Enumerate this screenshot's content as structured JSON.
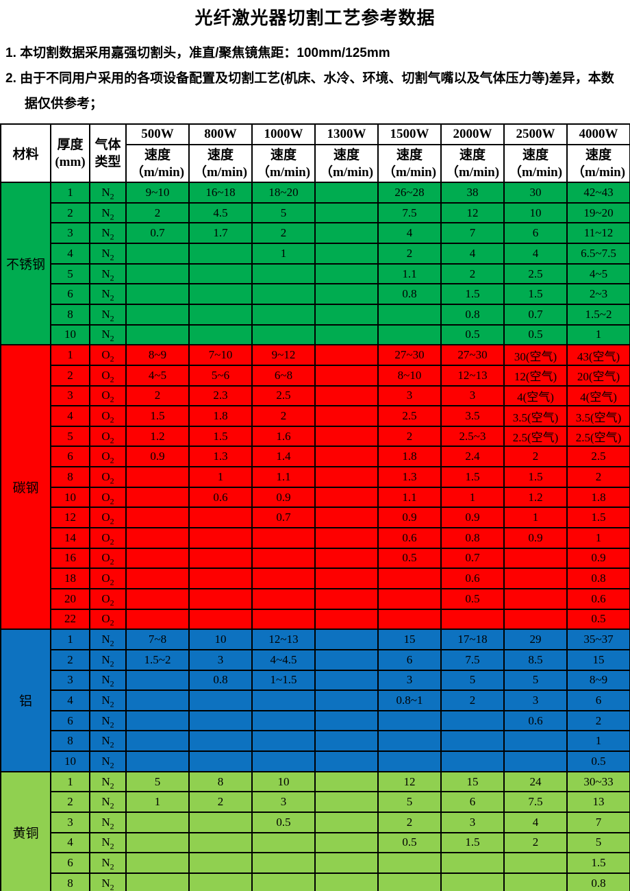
{
  "page": {
    "title": "光纤激光器切割工艺参考数据",
    "notes": [
      "1. 本切割数据采用嘉强切割头，准直/聚焦镜焦距：100mm/125mm",
      "2. 由于不同用户采用的各项设备配置及切割工艺(机床、水冷、环境、切割气嘴以及气体压力等)差异，本数据仅供参考；"
    ]
  },
  "table": {
    "header": {
      "material": "材料",
      "thickness_top": "厚度",
      "thickness_bottom": "(mm)",
      "gas_top": "气体",
      "gas_bottom": "类型",
      "powers": [
        "500W",
        "800W",
        "1000W",
        "1300W",
        "1500W",
        "2000W",
        "2500W",
        "4000W"
      ],
      "speed_label": "速度",
      "speed_unit": "（m/min)"
    },
    "sections": [
      {
        "material": "不锈钢",
        "color": "#00AC50",
        "rows": [
          {
            "thickness": "1",
            "gas": "N2",
            "speeds": [
              "9~10",
              "16~18",
              "18~20",
              "",
              "26~28",
              "38",
              "30",
              "42~43"
            ]
          },
          {
            "thickness": "2",
            "gas": "N2",
            "speeds": [
              "2",
              "4.5",
              "5",
              "",
              "7.5",
              "12",
              "10",
              "19~20"
            ]
          },
          {
            "thickness": "3",
            "gas": "N2",
            "speeds": [
              "0.7",
              "1.7",
              "2",
              "",
              "4",
              "7",
              "6",
              "11~12"
            ]
          },
          {
            "thickness": "4",
            "gas": "N2",
            "speeds": [
              "",
              "",
              "1",
              "",
              "2",
              "4",
              "4",
              "6.5~7.5"
            ]
          },
          {
            "thickness": "5",
            "gas": "N2",
            "speeds": [
              "",
              "",
              "",
              "",
              "1.1",
              "2",
              "2.5",
              "4~5"
            ]
          },
          {
            "thickness": "6",
            "gas": "N2",
            "speeds": [
              "",
              "",
              "",
              "",
              "0.8",
              "1.5",
              "1.5",
              "2~3"
            ]
          },
          {
            "thickness": "8",
            "gas": "N2",
            "speeds": [
              "",
              "",
              "",
              "",
              "",
              "0.8",
              "0.7",
              "1.5~2"
            ]
          },
          {
            "thickness": "10",
            "gas": "N2",
            "speeds": [
              "",
              "",
              "",
              "",
              "",
              "0.5",
              "0.5",
              "1"
            ]
          }
        ]
      },
      {
        "material": "碳钢",
        "color": "#FE0000",
        "rows": [
          {
            "thickness": "1",
            "gas": "O2",
            "speeds": [
              "8~9",
              "7~10",
              "9~12",
              "",
              "27~30",
              "27~30",
              "30(空气)",
              "43(空气)"
            ]
          },
          {
            "thickness": "2",
            "gas": "O2",
            "speeds": [
              "4~5",
              "5~6",
              "6~8",
              "",
              "8~10",
              "12~13",
              "12(空气)",
              "20(空气)"
            ]
          },
          {
            "thickness": "3",
            "gas": "O2",
            "speeds": [
              "2",
              "2.3",
              "2.5",
              "",
              "3",
              "3",
              "4(空气)",
              "4(空气)"
            ]
          },
          {
            "thickness": "4",
            "gas": "O2",
            "speeds": [
              "1.5",
              "1.8",
              "2",
              "",
              "2.5",
              "3.5",
              "3.5(空气)",
              "3.5(空气)"
            ]
          },
          {
            "thickness": "5",
            "gas": "O2",
            "speeds": [
              "1.2",
              "1.5",
              "1.6",
              "",
              "2",
              "2.5~3",
              "2.5(空气)",
              "2.5(空气)"
            ]
          },
          {
            "thickness": "6",
            "gas": "O2",
            "speeds": [
              "0.9",
              "1.3",
              "1.4",
              "",
              "1.8",
              "2.4",
              "2",
              "2.5"
            ]
          },
          {
            "thickness": "8",
            "gas": "O2",
            "speeds": [
              "",
              "1",
              "1.1",
              "",
              "1.3",
              "1.5",
              "1.5",
              "2"
            ]
          },
          {
            "thickness": "10",
            "gas": "O2",
            "speeds": [
              "",
              "0.6",
              "0.9",
              "",
              "1.1",
              "1",
              "1.2",
              "1.8"
            ]
          },
          {
            "thickness": "12",
            "gas": "O2",
            "speeds": [
              "",
              "",
              "0.7",
              "",
              "0.9",
              "0.9",
              "1",
              "1.5"
            ]
          },
          {
            "thickness": "14",
            "gas": "O2",
            "speeds": [
              "",
              "",
              "",
              "",
              "0.6",
              "0.8",
              "0.9",
              "1"
            ]
          },
          {
            "thickness": "16",
            "gas": "O2",
            "speeds": [
              "",
              "",
              "",
              "",
              "0.5",
              "0.7",
              "",
              "0.9"
            ]
          },
          {
            "thickness": "18",
            "gas": "O2",
            "speeds": [
              "",
              "",
              "",
              "",
              "",
              "0.6",
              "",
              "0.8"
            ]
          },
          {
            "thickness": "20",
            "gas": "O2",
            "speeds": [
              "",
              "",
              "",
              "",
              "",
              "0.5",
              "",
              "0.6"
            ]
          },
          {
            "thickness": "22",
            "gas": "O2",
            "speeds": [
              "",
              "",
              "",
              "",
              "",
              "",
              "",
              "0.5"
            ]
          }
        ]
      },
      {
        "material": "铝",
        "color": "#0D72C0",
        "rows": [
          {
            "thickness": "1",
            "gas": "N2",
            "speeds": [
              "7~8",
              "10",
              "12~13",
              "",
              "15",
              "17~18",
              "29",
              "35~37"
            ]
          },
          {
            "thickness": "2",
            "gas": "N2",
            "speeds": [
              "1.5~2",
              "3",
              "4~4.5",
              "",
              "6",
              "7.5",
              "8.5",
              "15"
            ]
          },
          {
            "thickness": "3",
            "gas": "N2",
            "speeds": [
              "",
              "0.8",
              "1~1.5",
              "",
              "3",
              "5",
              "5",
              "8~9"
            ]
          },
          {
            "thickness": "4",
            "gas": "N2",
            "speeds": [
              "",
              "",
              "",
              "",
              "0.8~1",
              "2",
              "3",
              "6"
            ]
          },
          {
            "thickness": "6",
            "gas": "N2",
            "speeds": [
              "",
              "",
              "",
              "",
              "",
              "",
              "0.6",
              "2"
            ]
          },
          {
            "thickness": "8",
            "gas": "N2",
            "speeds": [
              "",
              "",
              "",
              "",
              "",
              "",
              "",
              "1"
            ]
          },
          {
            "thickness": "10",
            "gas": "N2",
            "speeds": [
              "",
              "",
              "",
              "",
              "",
              "",
              "",
              "0.5"
            ]
          }
        ]
      },
      {
        "material": "黄铜",
        "color": "#90D050",
        "rows": [
          {
            "thickness": "1",
            "gas": "N2",
            "speeds": [
              "5",
              "8",
              "10",
              "",
              "12",
              "15",
              "24",
              "30~33"
            ]
          },
          {
            "thickness": "2",
            "gas": "N2",
            "speeds": [
              "1",
              "2",
              "3",
              "",
              "5",
              "6",
              "7.5",
              "13"
            ]
          },
          {
            "thickness": "3",
            "gas": "N2",
            "speeds": [
              "",
              "",
              "0.5",
              "",
              "2",
              "3",
              "4",
              "7"
            ]
          },
          {
            "thickness": "4",
            "gas": "N2",
            "speeds": [
              "",
              "",
              "",
              "",
              "0.5",
              "1.5",
              "2",
              "5"
            ]
          },
          {
            "thickness": "6",
            "gas": "N2",
            "speeds": [
              "",
              "",
              "",
              "",
              "",
              "",
              "",
              "1.5"
            ]
          },
          {
            "thickness": "8",
            "gas": "N2",
            "speeds": [
              "",
              "",
              "",
              "",
              "",
              "",
              "",
              "0.8"
            ]
          }
        ]
      }
    ]
  }
}
